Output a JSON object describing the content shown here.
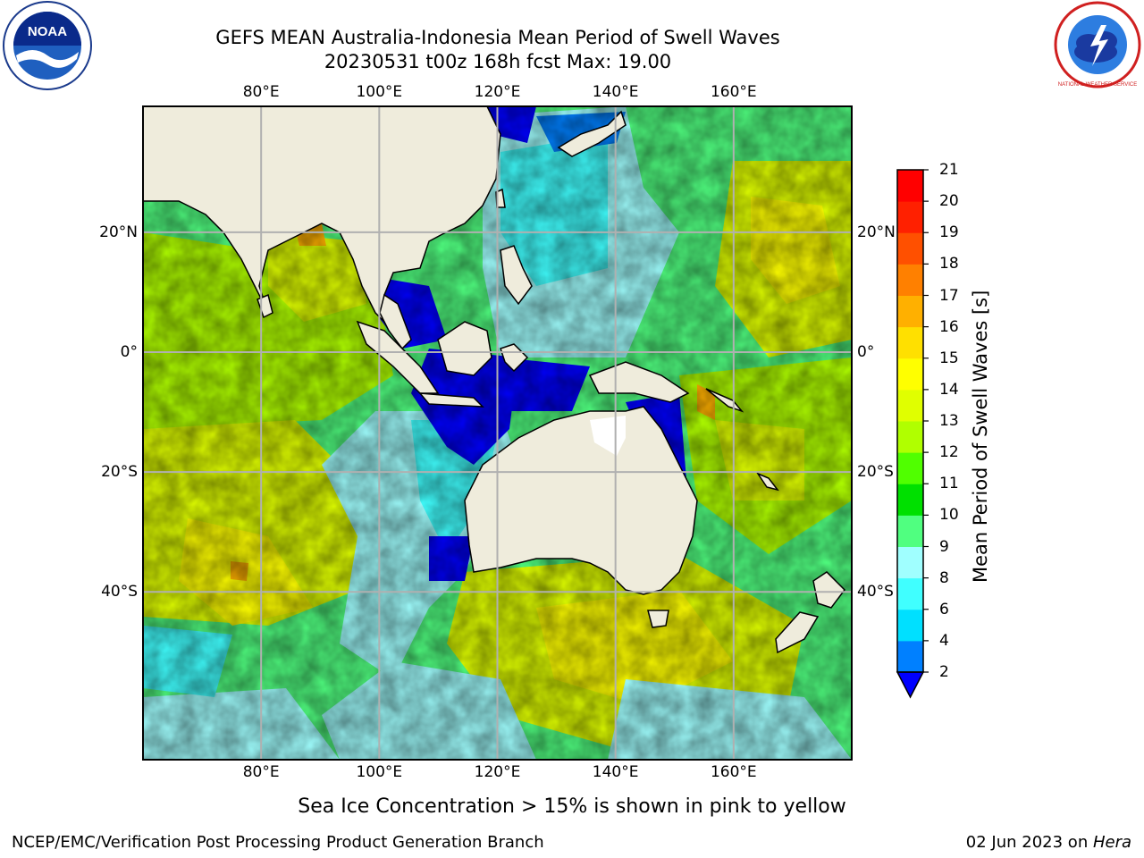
{
  "header": {
    "title_line1": "GEFS MEAN Australia-Indonesia Mean Period of Swell Waves",
    "title_line2": "20230531 t00z 168h fcst   Max: 19.00"
  },
  "logos": {
    "left": {
      "icon": "noaa-logo",
      "text": "NOAA"
    },
    "right": {
      "icon": "nws-logo",
      "text": "NATIONAL WEATHER SERVICE"
    }
  },
  "map": {
    "lon_ticks": [
      "80°E",
      "100°E",
      "120°E",
      "140°E",
      "160°E"
    ],
    "lat_ticks": [
      "20°N",
      "0°",
      "20°S",
      "40°S"
    ],
    "lon_values": [
      80,
      100,
      120,
      140,
      160
    ],
    "lat_values": [
      20,
      0,
      -20,
      -40
    ],
    "extent": {
      "lon_min": 60,
      "lon_max": 180,
      "lat_min": -68,
      "lat_max": 41
    },
    "land_color": "#efecdc",
    "grid_color": "#b0b0b0"
  },
  "colorbar": {
    "title": "Mean Period of Swell Waves [s]",
    "levels": [
      "2",
      "4",
      "6",
      "8",
      "9",
      "10",
      "11",
      "12",
      "13",
      "14",
      "15",
      "16",
      "17",
      "18",
      "19",
      "20",
      "21"
    ],
    "colors": [
      "#0000ff",
      "#0080ff",
      "#00e0ff",
      "#40ffff",
      "#a0ffff",
      "#50ff80",
      "#00e000",
      "#50ff00",
      "#b0ff00",
      "#e0ff00",
      "#ffff00",
      "#ffe000",
      "#ffb000",
      "#ff8000",
      "#ff5000",
      "#ff2000",
      "#ff0000"
    ],
    "extend_color": "#0000ff"
  },
  "note": "Sea Ice Concentration > 15% is shown in pink to yellow",
  "footer": {
    "left": "NCEP/EMC/Verification Post Processing Product Generation Branch",
    "right_date": "02 Jun 2023 on ",
    "right_host": "Hera"
  }
}
